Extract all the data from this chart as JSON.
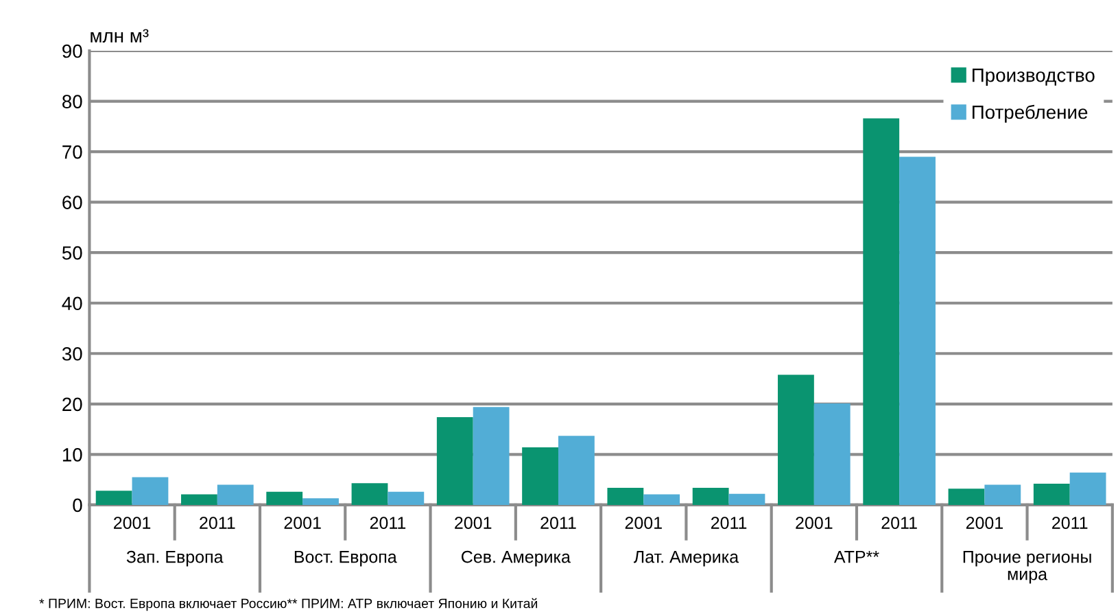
{
  "chart_data": {
    "type": "bar",
    "ylabel": "млн м³",
    "categories": [
      "2001",
      "2011",
      "2001",
      "2011",
      "2001",
      "2011",
      "2001",
      "2011",
      "2001",
      "2011",
      "2001",
      "2011"
    ],
    "series": [
      {
        "name": "Производство",
        "color": "#0a9470",
        "values": [
          2.8,
          2.1,
          2.6,
          4.3,
          17.4,
          11.4,
          3.4,
          3.4,
          25.8,
          76.6,
          3.2,
          4.2
        ]
      },
      {
        "name": "Потребление",
        "color": "#52add6",
        "values": [
          5.5,
          4.0,
          1.3,
          2.6,
          19.4,
          13.7,
          2.1,
          2.2,
          20.1,
          69.0,
          4.0,
          6.4
        ]
      }
    ],
    "ylim": [
      0,
      90
    ],
    "yticks": [
      0,
      10,
      20,
      30,
      40,
      50,
      60,
      70,
      80,
      90
    ],
    "grid": "y",
    "legend": "top right",
    "annotations": [
      "Зап. Европа",
      "Вост. Европа",
      "Сев. Америка",
      "Лат. Америка",
      "АТР**",
      "Прочие регионы\nмира",
      "* ПРИМ: Вост. Европа включает Россию** ПРИМ: АТР включает Японию и Китай"
    ]
  }
}
